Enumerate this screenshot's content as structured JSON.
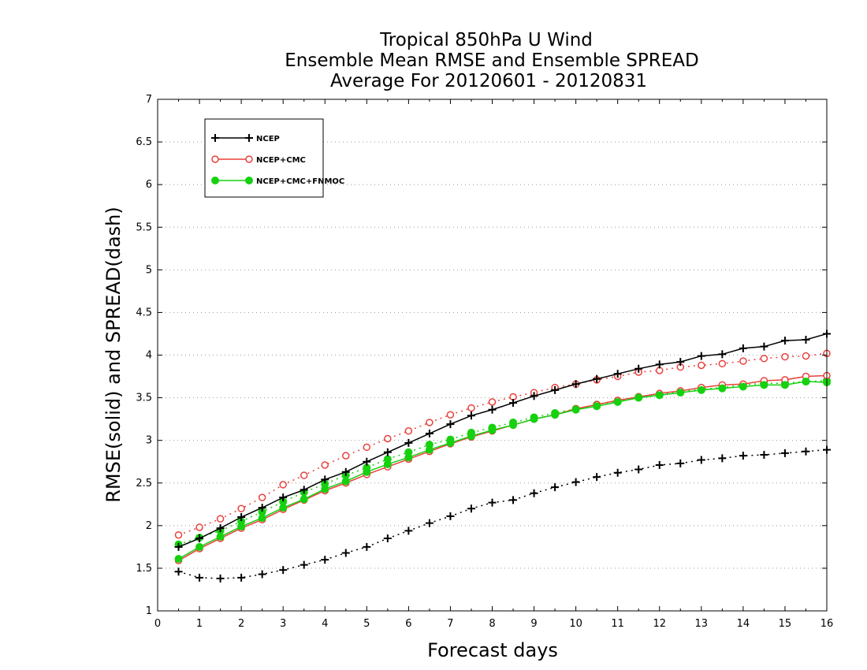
{
  "chart_data": {
    "type": "line",
    "title": [
      "Tropical 850hPa U Wind",
      "Ensemble Mean RMSE and Ensemble SPREAD",
      "Average For 20120601 - 20120831"
    ],
    "xlabel": "Forecast days",
    "ylabel": "RMSE(solid) and SPREAD(dash)",
    "xlim": [
      0,
      16
    ],
    "ylim": [
      1,
      7
    ],
    "xticks": [
      "0",
      "1",
      "2",
      "3",
      "4",
      "5",
      "6",
      "7",
      "8",
      "9",
      "10",
      "11",
      "12",
      "13",
      "14",
      "15",
      "16"
    ],
    "yticks": [
      "1",
      "1.5",
      "2",
      "2.5",
      "3",
      "3.5",
      "4",
      "4.5",
      "5",
      "5.5",
      "6",
      "6.5",
      "7"
    ],
    "grid": "horizontal dotted",
    "legend_placement": "top-left",
    "x": [
      0.5,
      1,
      1.5,
      2,
      2.5,
      3,
      3.5,
      4,
      4.5,
      5,
      5.5,
      6,
      6.5,
      7,
      7.5,
      8,
      8.5,
      9,
      9.5,
      10,
      10.5,
      11,
      11.5,
      12,
      12.5,
      13,
      13.5,
      14,
      14.5,
      15,
      15.5,
      16
    ],
    "series": [
      {
        "name": "NCEP",
        "metric": "RMSE",
        "style": "solid",
        "marker": "plus",
        "color": "#000000",
        "values": [
          1.75,
          1.85,
          1.97,
          2.1,
          2.21,
          2.33,
          2.42,
          2.54,
          2.63,
          2.75,
          2.86,
          2.97,
          3.08,
          3.19,
          3.29,
          3.36,
          3.44,
          3.52,
          3.59,
          3.66,
          3.72,
          3.78,
          3.84,
          3.89,
          3.92,
          3.99,
          4.01,
          4.08,
          4.1,
          4.17,
          4.18,
          4.25
        ]
      },
      {
        "metric": "SPREAD",
        "style": "dash",
        "marker": "plus",
        "color": "#000000",
        "values": [
          1.46,
          1.39,
          1.38,
          1.39,
          1.43,
          1.48,
          1.54,
          1.6,
          1.68,
          1.75,
          1.85,
          1.94,
          2.03,
          2.11,
          2.2,
          2.27,
          2.3,
          2.38,
          2.45,
          2.51,
          2.57,
          2.62,
          2.66,
          2.71,
          2.73,
          2.77,
          2.79,
          2.82,
          2.83,
          2.85,
          2.87,
          2.89
        ]
      },
      {
        "name": "NCEP+CMC",
        "metric": "RMSE",
        "style": "solid",
        "marker": "open-circle",
        "color": "#e8413c",
        "values": [
          1.59,
          1.73,
          1.85,
          1.97,
          2.07,
          2.19,
          2.3,
          2.41,
          2.5,
          2.6,
          2.69,
          2.78,
          2.87,
          2.96,
          3.04,
          3.11,
          3.18,
          3.25,
          3.3,
          3.37,
          3.42,
          3.47,
          3.51,
          3.55,
          3.58,
          3.62,
          3.65,
          3.66,
          3.7,
          3.71,
          3.75,
          3.76
        ]
      },
      {
        "metric": "SPREAD",
        "style": "dash",
        "marker": "open-circle",
        "color": "#e8413c",
        "values": [
          1.89,
          1.98,
          2.08,
          2.2,
          2.33,
          2.48,
          2.59,
          2.71,
          2.82,
          2.92,
          3.02,
          3.11,
          3.21,
          3.3,
          3.38,
          3.45,
          3.51,
          3.56,
          3.62,
          3.66,
          3.71,
          3.75,
          3.8,
          3.82,
          3.86,
          3.88,
          3.9,
          3.93,
          3.96,
          3.98,
          3.99,
          4.02
        ]
      },
      {
        "name": "NCEP+CMC+FNMOC",
        "metric": "RMSE",
        "style": "solid",
        "marker": "filled-circle",
        "color": "#16d10f",
        "values": [
          1.61,
          1.75,
          1.87,
          1.99,
          2.09,
          2.21,
          2.31,
          2.43,
          2.52,
          2.63,
          2.72,
          2.8,
          2.89,
          2.97,
          3.05,
          3.12,
          3.18,
          3.25,
          3.3,
          3.36,
          3.4,
          3.45,
          3.5,
          3.53,
          3.56,
          3.59,
          3.61,
          3.63,
          3.65,
          3.65,
          3.69,
          3.68
        ]
      },
      {
        "metric": "SPREAD",
        "style": "dash",
        "marker": "filled-circle",
        "color": "#16d10f",
        "values": [
          1.78,
          1.86,
          1.94,
          2.05,
          2.16,
          2.28,
          2.39,
          2.49,
          2.59,
          2.68,
          2.78,
          2.86,
          2.95,
          3.01,
          3.09,
          3.15,
          3.21,
          3.27,
          3.32,
          3.37,
          3.42,
          3.46,
          3.51,
          3.54,
          3.57,
          3.6,
          3.62,
          3.65,
          3.67,
          3.67,
          3.69,
          3.7
        ]
      }
    ]
  }
}
